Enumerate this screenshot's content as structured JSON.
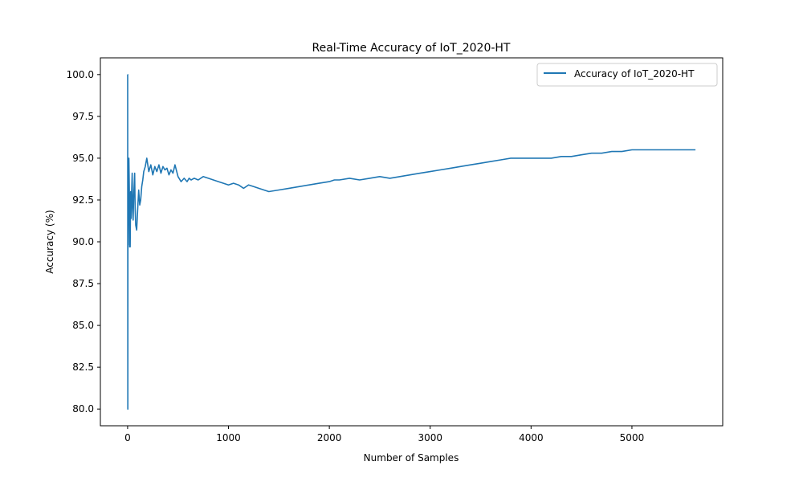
{
  "chart_data": {
    "type": "line",
    "title": "Real-Time Accuracy of IoT_2020-HT",
    "xlabel": "Number of Samples",
    "ylabel": "Accuracy (%)",
    "xlim": [
      -270,
      5900
    ],
    "ylim": [
      79,
      101
    ],
    "x_ticks": [
      0,
      1000,
      2000,
      3000,
      4000,
      5000
    ],
    "y_ticks": [
      80.0,
      82.5,
      85.0,
      87.5,
      90.0,
      92.5,
      95.0,
      97.5,
      100.0
    ],
    "x_tick_labels": [
      "0",
      "1000",
      "2000",
      "3000",
      "4000",
      "5000"
    ],
    "y_tick_labels": [
      "80.0",
      "82.5",
      "85.0",
      "87.5",
      "90.0",
      "92.5",
      "95.0",
      "97.5",
      "100.0"
    ],
    "grid": false,
    "legend": {
      "position": "top-right"
    },
    "series": [
      {
        "name": "Accuracy of IoT_2020-HT",
        "color": "#1f77b4",
        "x": [
          0,
          1,
          2,
          3,
          5,
          8,
          10,
          13,
          15,
          18,
          20,
          25,
          30,
          35,
          40,
          45,
          50,
          55,
          60,
          70,
          75,
          80,
          90,
          100,
          110,
          120,
          130,
          140,
          150,
          160,
          175,
          190,
          210,
          230,
          250,
          270,
          290,
          310,
          330,
          350,
          370,
          390,
          410,
          430,
          450,
          470,
          500,
          530,
          560,
          590,
          610,
          630,
          660,
          700,
          750,
          800,
          850,
          900,
          950,
          1000,
          1050,
          1100,
          1150,
          1200,
          1250,
          1300,
          1400,
          1500,
          1600,
          1700,
          1800,
          1900,
          2000,
          2050,
          2100,
          2200,
          2300,
          2400,
          2500,
          2600,
          2700,
          2800,
          2900,
          3000,
          3100,
          3200,
          3300,
          3400,
          3500,
          3600,
          3700,
          3800,
          3900,
          4000,
          4100,
          4200,
          4300,
          4400,
          4500,
          4600,
          4700,
          4800,
          4900,
          5000,
          5100,
          5200,
          5300,
          5400,
          5500,
          5600,
          5630
        ],
        "y": [
          100.0,
          100.0,
          80.0,
          90.0,
          89.8,
          92.3,
          93.5,
          95.0,
          94.0,
          92.5,
          89.7,
          89.7,
          93.0,
          91.4,
          92.9,
          94.1,
          92.0,
          91.3,
          92.7,
          94.1,
          92.0,
          91.0,
          90.7,
          92.0,
          93.1,
          92.2,
          92.5,
          93.3,
          93.7,
          94.2,
          94.5,
          95.0,
          94.2,
          94.6,
          94.0,
          94.5,
          94.2,
          94.6,
          94.1,
          94.5,
          94.3,
          94.4,
          94.0,
          94.3,
          94.1,
          94.6,
          93.9,
          93.6,
          93.8,
          93.6,
          93.8,
          93.7,
          93.8,
          93.7,
          93.9,
          93.8,
          93.7,
          93.6,
          93.5,
          93.4,
          93.5,
          93.4,
          93.2,
          93.4,
          93.3,
          93.2,
          93.0,
          93.1,
          93.2,
          93.3,
          93.4,
          93.5,
          93.6,
          93.7,
          93.7,
          93.8,
          93.7,
          93.8,
          93.9,
          93.8,
          93.9,
          94.0,
          94.1,
          94.2,
          94.3,
          94.4,
          94.5,
          94.6,
          94.7,
          94.8,
          94.9,
          95.0,
          95.0,
          95.0,
          95.0,
          95.0,
          95.1,
          95.1,
          95.2,
          95.3,
          95.3,
          95.4,
          95.4,
          95.5,
          95.5,
          95.5,
          95.5,
          95.5,
          95.5,
          95.5,
          95.5
        ]
      }
    ]
  }
}
